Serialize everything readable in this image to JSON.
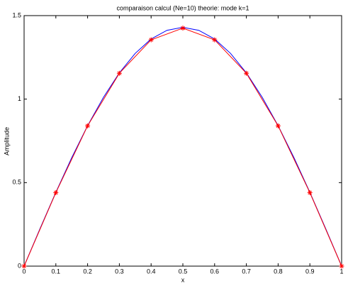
{
  "chart_data": {
    "type": "line",
    "title": "comparaison calcul (Ne=10) theorie: mode k=1",
    "xlabel": "x",
    "ylabel": "Amplitude",
    "series": [
      {
        "color": "#0000ff",
        "marker": false,
        "x": [
          0,
          0.05,
          0.1,
          0.15,
          0.2,
          0.25,
          0.3,
          0.35,
          0.4,
          0.45,
          0.5,
          0.55,
          0.6,
          0.65,
          0.7,
          0.75,
          0.8,
          0.85,
          0.9,
          0.95,
          1
        ],
        "values": [
          0,
          0.224,
          0.442,
          0.649,
          0.841,
          1.011,
          1.157,
          1.274,
          1.36,
          1.412,
          1.43,
          1.412,
          1.36,
          1.274,
          1.157,
          1.011,
          0.841,
          0.649,
          0.442,
          0.224,
          0
        ]
      },
      {
        "color": "#ff0000",
        "marker": true,
        "x": [
          0,
          0.1,
          0.2,
          0.3,
          0.4,
          0.5,
          0.6,
          0.7,
          0.8,
          0.9,
          1
        ],
        "values": [
          0,
          0.44,
          0.84,
          1.155,
          1.355,
          1.425,
          1.355,
          1.155,
          0.84,
          0.44,
          0
        ]
      }
    ],
    "xlim": [
      0,
      1
    ],
    "xticks": [
      0,
      0.1,
      0.2,
      0.3,
      0.4,
      0.5,
      0.6,
      0.7,
      0.8,
      0.9,
      1
    ],
    "ylim": [
      0,
      1.5
    ],
    "yticks": [
      0,
      0.5,
      1,
      1.5
    ]
  }
}
